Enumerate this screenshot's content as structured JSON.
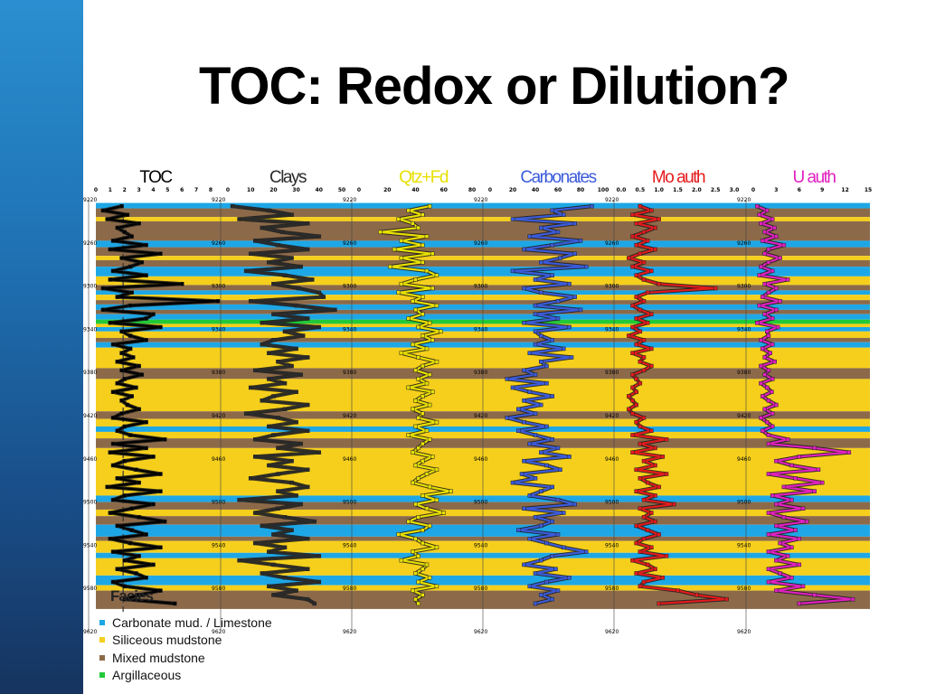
{
  "slide": {
    "title": "TOC: Redox or Dilution?"
  },
  "colors": {
    "sidebar_top": "#2a8fd0",
    "sidebar_bottom": "#16345f"
  },
  "legend": {
    "title": "Facies",
    "items": [
      {
        "label": "Carbonate mud. / Limestone",
        "color": "#1ea7e6"
      },
      {
        "label": "Siliceous mudstone",
        "color": "#f5cf1c"
      },
      {
        "label": "Mixed mudstone",
        "color": "#8c6a49"
      },
      {
        "label": "Argillaceous",
        "color": "#22c93a"
      }
    ]
  },
  "chart_data": {
    "type": "line",
    "depth_axis": {
      "range": [
        9220,
        9620
      ],
      "ticks": [
        9220,
        9260,
        9300,
        9340,
        9380,
        9420,
        9460,
        9500,
        9540,
        9580,
        9620
      ]
    },
    "depth_labels": [
      "9220",
      "9260",
      "9300",
      "9340",
      "9380",
      "9420",
      "9460",
      "9500",
      "9540",
      "9580",
      "9620"
    ],
    "depth": [
      9226,
      9230,
      9234,
      9238,
      9242,
      9246,
      9250,
      9254,
      9258,
      9262,
      9266,
      9270,
      9274,
      9278,
      9282,
      9286,
      9290,
      9294,
      9298,
      9302,
      9306,
      9310,
      9314,
      9318,
      9322,
      9326,
      9330,
      9334,
      9338,
      9342,
      9346,
      9350,
      9354,
      9358,
      9362,
      9366,
      9370,
      9374,
      9378,
      9382,
      9386,
      9390,
      9394,
      9398,
      9402,
      9406,
      9410,
      9414,
      9418,
      9422,
      9426,
      9430,
      9434,
      9438,
      9442,
      9446,
      9450,
      9454,
      9458,
      9462,
      9466,
      9470,
      9474,
      9478,
      9482,
      9486,
      9490,
      9494,
      9498,
      9502,
      9506,
      9510,
      9514,
      9518,
      9522,
      9526,
      9530,
      9534,
      9538,
      9542,
      9546,
      9550,
      9554,
      9558,
      9562,
      9566,
      9570,
      9574,
      9578,
      9582,
      9586,
      9590,
      9594
    ],
    "facies": [
      {
        "top": 9223,
        "base": 9228,
        "type": "Carbonate mud. / Limestone"
      },
      {
        "top": 9228,
        "base": 9236,
        "type": "Mixed mudstone"
      },
      {
        "top": 9236,
        "base": 9240,
        "type": "Siliceous mudstone"
      },
      {
        "top": 9240,
        "base": 9258,
        "type": "Mixed mudstone"
      },
      {
        "top": 9258,
        "base": 9264,
        "type": "Carbonate mud. / Limestone"
      },
      {
        "top": 9264,
        "base": 9272,
        "type": "Mixed mudstone"
      },
      {
        "top": 9272,
        "base": 9276,
        "type": "Siliceous mudstone"
      },
      {
        "top": 9276,
        "base": 9282,
        "type": "Mixed mudstone"
      },
      {
        "top": 9282,
        "base": 9291,
        "type": "Carbonate mud. / Limestone"
      },
      {
        "top": 9291,
        "base": 9299,
        "type": "Siliceous mudstone"
      },
      {
        "top": 9299,
        "base": 9304,
        "type": "Mixed mudstone"
      },
      {
        "top": 9304,
        "base": 9308,
        "type": "Carbonate mud. / Limestone"
      },
      {
        "top": 9308,
        "base": 9313,
        "type": "Siliceous mudstone"
      },
      {
        "top": 9313,
        "base": 9317,
        "type": "Mixed mudstone"
      },
      {
        "top": 9317,
        "base": 9322,
        "type": "Carbonate mud. / Limestone"
      },
      {
        "top": 9322,
        "base": 9326,
        "type": "Mixed mudstone"
      },
      {
        "top": 9326,
        "base": 9331,
        "type": "Carbonate mud. / Limestone"
      },
      {
        "top": 9331,
        "base": 9335,
        "type": "Argillaceous"
      },
      {
        "top": 9335,
        "base": 9338,
        "type": "Siliceous mudstone"
      },
      {
        "top": 9338,
        "base": 9342,
        "type": "Carbonate mud. / Limestone"
      },
      {
        "top": 9342,
        "base": 9348,
        "type": "Siliceous mudstone"
      },
      {
        "top": 9348,
        "base": 9352,
        "type": "Mixed mudstone"
      },
      {
        "top": 9352,
        "base": 9357,
        "type": "Carbonate mud. / Limestone"
      },
      {
        "top": 9357,
        "base": 9376,
        "type": "Siliceous mudstone"
      },
      {
        "top": 9376,
        "base": 9386,
        "type": "Mixed mudstone"
      },
      {
        "top": 9386,
        "base": 9416,
        "type": "Siliceous mudstone"
      },
      {
        "top": 9416,
        "base": 9423,
        "type": "Mixed mudstone"
      },
      {
        "top": 9423,
        "base": 9430,
        "type": "Siliceous mudstone"
      },
      {
        "top": 9430,
        "base": 9435,
        "type": "Carbonate mud. / Limestone"
      },
      {
        "top": 9435,
        "base": 9441,
        "type": "Siliceous mudstone"
      },
      {
        "top": 9441,
        "base": 9450,
        "type": "Mixed mudstone"
      },
      {
        "top": 9450,
        "base": 9494,
        "type": "Siliceous mudstone"
      },
      {
        "top": 9494,
        "base": 9500,
        "type": "Carbonate mud. / Limestone"
      },
      {
        "top": 9500,
        "base": 9507,
        "type": "Mixed mudstone"
      },
      {
        "top": 9507,
        "base": 9513,
        "type": "Siliceous mudstone"
      },
      {
        "top": 9513,
        "base": 9521,
        "type": "Mixed mudstone"
      },
      {
        "top": 9521,
        "base": 9532,
        "type": "Carbonate mud. / Limestone"
      },
      {
        "top": 9532,
        "base": 9536,
        "type": "Mixed mudstone"
      },
      {
        "top": 9536,
        "base": 9547,
        "type": "Siliceous mudstone"
      },
      {
        "top": 9547,
        "base": 9552,
        "type": "Carbonate mud. / Limestone"
      },
      {
        "top": 9552,
        "base": 9568,
        "type": "Siliceous mudstone"
      },
      {
        "top": 9568,
        "base": 9577,
        "type": "Carbonate mud. / Limestone"
      },
      {
        "top": 9577,
        "base": 9582,
        "type": "Siliceous mudstone"
      },
      {
        "top": 9582,
        "base": 9599,
        "type": "Mixed mudstone"
      }
    ],
    "tracks": [
      {
        "title": "TOC",
        "color": "#000000",
        "ticks": [
          "0",
          "1",
          "2",
          "3",
          "4",
          "5",
          "6",
          "7",
          "8"
        ],
        "xlim": [
          0,
          8
        ],
        "ref_line": 1.9,
        "values": [
          1.8,
          0.5,
          2.2,
          0.8,
          3.0,
          1.5,
          2.0,
          2.5,
          1.2,
          3.5,
          1.0,
          4.5,
          1.8,
          3.2,
          2.4,
          1.2,
          3.5,
          1.0,
          6.0,
          0.5,
          2.5,
          1.5,
          8.5,
          2.4,
          0.5,
          4.0,
          3.5,
          1.0,
          4.5,
          1.8,
          2.4,
          3.5,
          1.2,
          2.4,
          1.8,
          2.6,
          1.5,
          3.0,
          1.8,
          3.2,
          2.0,
          1.5,
          2.8,
          1.2,
          2.5,
          1.8,
          2.2,
          3.0,
          1.8,
          1.2,
          3.5,
          2.0,
          1.5,
          2.4,
          4.8,
          1.2,
          3.5,
          1.0,
          4.0,
          2.0,
          1.2,
          2.8,
          4.5,
          1.5,
          3.0,
          0.8,
          4.5,
          2.0,
          1.2,
          4.0,
          2.5,
          1.0,
          3.0,
          4.8,
          1.5,
          2.5,
          3.5,
          1.0,
          2.4,
          4.5,
          1.2,
          3.0,
          2.0,
          4.0,
          1.5,
          2.8,
          3.5,
          1.2,
          2.0,
          4.5,
          3.0,
          2.0,
          5.5
        ]
      },
      {
        "title": "Clays",
        "color": "#2b2b2b",
        "ticks": [
          "0",
          "10",
          "20",
          "30",
          "40",
          "50"
        ],
        "xlim": [
          0,
          50
        ],
        "values": [
          2,
          18,
          28,
          5,
          35,
          15,
          24,
          40,
          12,
          22,
          35,
          10,
          28,
          18,
          32,
          8,
          25,
          37,
          20,
          31,
          40,
          42,
          10,
          30,
          47,
          20,
          35,
          15,
          40,
          25,
          33,
          20,
          15,
          30,
          18,
          35,
          22,
          28,
          12,
          32,
          18,
          25,
          10,
          30,
          20,
          15,
          35,
          25,
          8,
          22,
          30,
          18,
          35,
          20,
          12,
          32,
          22,
          40,
          12,
          28,
          18,
          35,
          22,
          10,
          28,
          35,
          22,
          30,
          5,
          32,
          22,
          12,
          25,
          38,
          15,
          28,
          20,
          35,
          12,
          25,
          18,
          40,
          5,
          20,
          35,
          15,
          25,
          40,
          18,
          30,
          20,
          35,
          38
        ]
      },
      {
        "title": "Qtz+Fd",
        "color": "#e8e000",
        "ticks": [
          "0",
          "20",
          "40",
          "60",
          "80"
        ],
        "xlim": [
          0,
          80
        ],
        "values": [
          50,
          35,
          45,
          28,
          38,
          42,
          15,
          48,
          30,
          45,
          25,
          52,
          30,
          45,
          22,
          48,
          55,
          40,
          30,
          52,
          28,
          45,
          38,
          55,
          40,
          45,
          35,
          50,
          42,
          58,
          45,
          52,
          38,
          48,
          30,
          42,
          55,
          45,
          40,
          50,
          42,
          48,
          35,
          52,
          45,
          40,
          50,
          38,
          45,
          42,
          55,
          40,
          48,
          35,
          50,
          45,
          42,
          38,
          52,
          45,
          40,
          55,
          48,
          42,
          38,
          50,
          65,
          45,
          55,
          40,
          48,
          60,
          42,
          35,
          50,
          45,
          28,
          40,
          45,
          55,
          38,
          42,
          30,
          48,
          45,
          40,
          50,
          42,
          55,
          38,
          45,
          40,
          42
        ]
      },
      {
        "title": "Carbonates",
        "color": "#3b5bdb",
        "ticks": [
          "0",
          "20",
          "40",
          "60",
          "80",
          "100"
        ],
        "xlim": [
          0,
          100
        ],
        "values": [
          90,
          55,
          65,
          20,
          75,
          45,
          60,
          35,
          80,
          55,
          30,
          75,
          62,
          45,
          85,
          20,
          55,
          40,
          70,
          30,
          45,
          75,
          60,
          40,
          80,
          40,
          60,
          30,
          70,
          40,
          45,
          55,
          40,
          65,
          35,
          72,
          45,
          50,
          30,
          40,
          15,
          50,
          20,
          35,
          55,
          30,
          45,
          25,
          40,
          15,
          30,
          50,
          25,
          40,
          55,
          35,
          60,
          45,
          70,
          30,
          50,
          62,
          28,
          40,
          20,
          55,
          45,
          35,
          60,
          75,
          30,
          65,
          40,
          55,
          45,
          25,
          60,
          35,
          50,
          65,
          85,
          55,
          45,
          30,
          58,
          40,
          70,
          50,
          35,
          60,
          45,
          55,
          40
        ]
      },
      {
        "title": "Mo auth",
        "color": "#e41a1c",
        "ticks": [
          "0.0",
          "0.5",
          "1.0",
          "1.5",
          "2.0",
          "2.5",
          "3.0"
        ],
        "xlim": [
          0,
          3
        ],
        "values": [
          0.5,
          0.8,
          0.3,
          1.0,
          0.4,
          0.9,
          0.6,
          0.3,
          0.7,
          0.4,
          0.9,
          0.5,
          0.2,
          0.6,
          0.3,
          0.8,
          0.4,
          0.6,
          1.0,
          2.5,
          0.7,
          0.4,
          0.6,
          0.3,
          0.5,
          0.8,
          0.4,
          0.7,
          0.3,
          0.5,
          0.2,
          0.6,
          0.4,
          0.8,
          0.3,
          0.6,
          0.5,
          0.8,
          0.6,
          0.3,
          0.4,
          0.5,
          0.3,
          0.4,
          0.2,
          0.3,
          0.4,
          0.2,
          0.3,
          0.6,
          0.4,
          0.5,
          0.8,
          0.3,
          1.2,
          0.5,
          0.9,
          0.3,
          1.1,
          0.6,
          0.9,
          0.4,
          1.2,
          0.5,
          0.7,
          1.0,
          0.4,
          0.9,
          0.6,
          1.4,
          0.5,
          0.8,
          0.6,
          0.9,
          0.4,
          0.7,
          1.0,
          0.6,
          0.4,
          0.8,
          0.5,
          1.2,
          0.3,
          0.7,
          0.9,
          0.4,
          1.1,
          0.6,
          0.5,
          1.5,
          2.0,
          2.8,
          1.0
        ]
      },
      {
        "title": "U auth",
        "color": "#e020c0",
        "ticks": [
          "0",
          "3",
          "6",
          "9",
          "12",
          "15"
        ],
        "xlim": [
          0,
          15
        ],
        "values": [
          0.5,
          1.8,
          0.8,
          2.5,
          1.0,
          2.8,
          1.5,
          3.0,
          1.2,
          4.0,
          2.0,
          1.5,
          3.5,
          2.0,
          1.0,
          2.5,
          0.8,
          4.5,
          1.5,
          3.0,
          2.0,
          1.2,
          3.5,
          0.8,
          3.0,
          1.5,
          2.5,
          0.5,
          3.2,
          1.8,
          2.0,
          1.0,
          2.5,
          1.2,
          2.2,
          1.5,
          2.8,
          1.0,
          2.0,
          1.5,
          2.5,
          1.0,
          1.8,
          2.4,
          1.2,
          2.0,
          3.0,
          1.5,
          2.5,
          1.0,
          1.8,
          2.5,
          1.2,
          2.0,
          4.5,
          2.0,
          8.0,
          12.5,
          6.0,
          3.0,
          5.0,
          8.5,
          2.0,
          5.5,
          9.0,
          4.0,
          8.0,
          2.5,
          5.0,
          3.0,
          6.5,
          2.0,
          4.0,
          7.0,
          3.0,
          5.5,
          2.0,
          6.0,
          3.5,
          5.0,
          2.0,
          4.5,
          3.0,
          6.0,
          2.0,
          3.5,
          5.0,
          2.0,
          6.5,
          3.0,
          8.0,
          13.0,
          6.0
        ]
      }
    ]
  }
}
